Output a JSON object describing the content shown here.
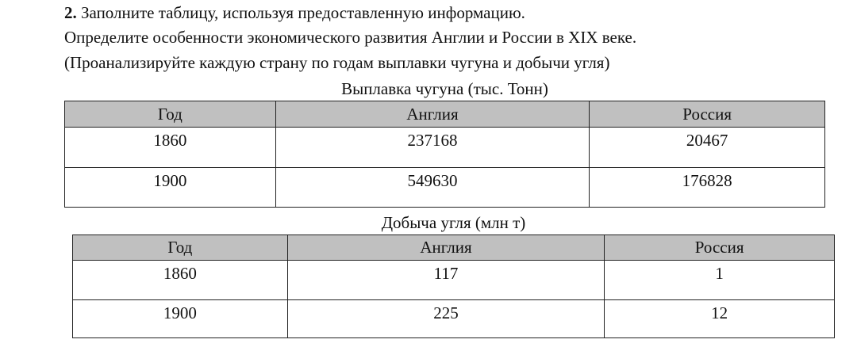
{
  "task": {
    "number": "2.",
    "line1": "Заполните таблицу, используя предоставленную информацию.",
    "line2": "Определите особенности экономического развития Англии и России в XIX веке.",
    "line3": "(Проанализируйте каждую страну по годам выплавки чугуна и добычи угля)"
  },
  "iron_table": {
    "caption": "Выплавка чугуна (тыс. Тонн)",
    "headers": [
      "Год",
      "Англия",
      "Россия"
    ],
    "rows": [
      [
        "1860",
        "237168",
        "20467"
      ],
      [
        "1900",
        "549630",
        "176828"
      ]
    ]
  },
  "coal_table": {
    "caption": "Добыча угля (млн т)",
    "headers": [
      "Год",
      "Англия",
      "Россия"
    ],
    "rows": [
      [
        "1860",
        "117",
        "1"
      ],
      [
        "1900",
        "225",
        "12"
      ]
    ]
  }
}
